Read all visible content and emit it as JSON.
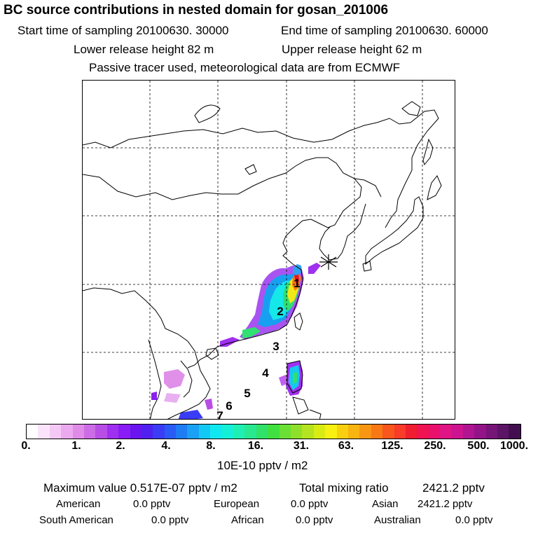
{
  "header": {
    "title": "BC  source contributions in nested domain for gosan_201006",
    "start_label": "Start time of sampling 20100630. 30000",
    "end_label": "End time of sampling 20100630. 60000",
    "lower_label": "Lower release height   82 m",
    "upper_label": "Upper release height   62 m",
    "note": "Passive tracer used, meteorological data are from ECMWF"
  },
  "map": {
    "receptor_marker": "asterisk-icon",
    "site_labels": [
      "1",
      "2",
      "3",
      "4",
      "5",
      "6",
      "7"
    ]
  },
  "colorbar": {
    "colors": [
      "#ffffff",
      "#fbe4fb",
      "#f4c8f4",
      "#eca9ef",
      "#e08be8",
      "#cc6ce6",
      "#b84ee6",
      "#a030f0",
      "#8a1cf5",
      "#6a14f0",
      "#4f20f0",
      "#3b3cf5",
      "#2a5cf5",
      "#1e7cf5",
      "#1aa0f5",
      "#14c8f5",
      "#0fe8f0",
      "#14f0d8",
      "#1ef0b4",
      "#28e890",
      "#30e26a",
      "#40e040",
      "#6ae035",
      "#8fe02a",
      "#b4e41f",
      "#d8ec14",
      "#f8f010",
      "#f8d010",
      "#f8b410",
      "#f89614",
      "#f87814",
      "#f8561c",
      "#f83c28",
      "#f01e30",
      "#f01450",
      "#e8106c",
      "#e01484",
      "#cc1490",
      "#b01490",
      "#921488",
      "#761478",
      "#5c1466",
      "#420e50"
    ],
    "tick_labels": [
      "0.",
      "1.",
      "2.",
      "4.",
      "8.",
      "16.",
      "31.",
      "63.",
      "125.",
      "250.",
      "500.",
      "1000."
    ],
    "units": "10E-10 pptv / m2"
  },
  "summary": {
    "max_label": "Maximum value  0.517E-07 pptv / m2",
    "total_label": "Total mixing ratio",
    "total_value": "2421.2 pptv",
    "regions": [
      {
        "name": "American",
        "value": "0.0 pptv"
      },
      {
        "name": "European",
        "value": "0.0 pptv"
      },
      {
        "name": "Asian",
        "value": "2421.2 pptv"
      },
      {
        "name": "South American",
        "value": "0.0 pptv"
      },
      {
        "name": "African",
        "value": "0.0 pptv"
      },
      {
        "name": "Australian",
        "value": "0.0 pptv"
      }
    ]
  }
}
